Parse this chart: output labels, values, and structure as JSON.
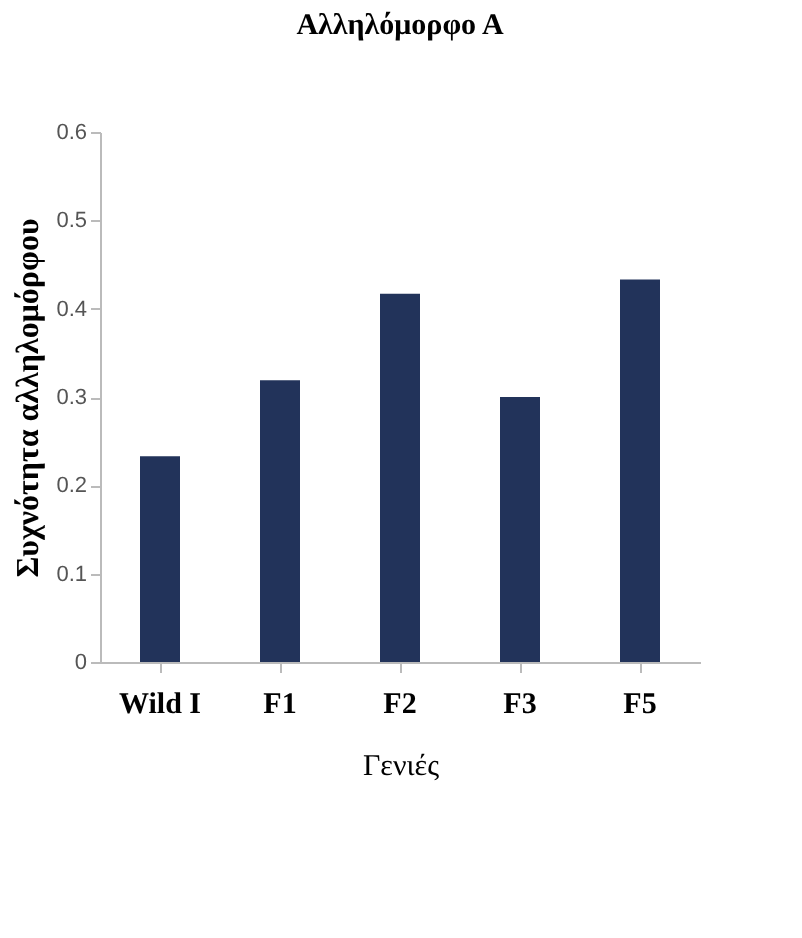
{
  "chart_data": {
    "type": "bar",
    "title": "Αλληλόμορφο Α",
    "xlabel": "Γενιές",
    "ylabel": "Συχνότητα αλληλομόρφου",
    "categories": [
      "Wild I",
      "F1",
      "F2",
      "F3",
      "F5"
    ],
    "values": [
      0.233,
      0.319,
      0.417,
      0.3,
      0.433
    ],
    "color": "#22335a",
    "ylim": [
      0,
      0.6
    ],
    "yticks": [
      0,
      0.1,
      0.2,
      0.3,
      0.4,
      0.5,
      0.6
    ],
    "grid": false
  }
}
